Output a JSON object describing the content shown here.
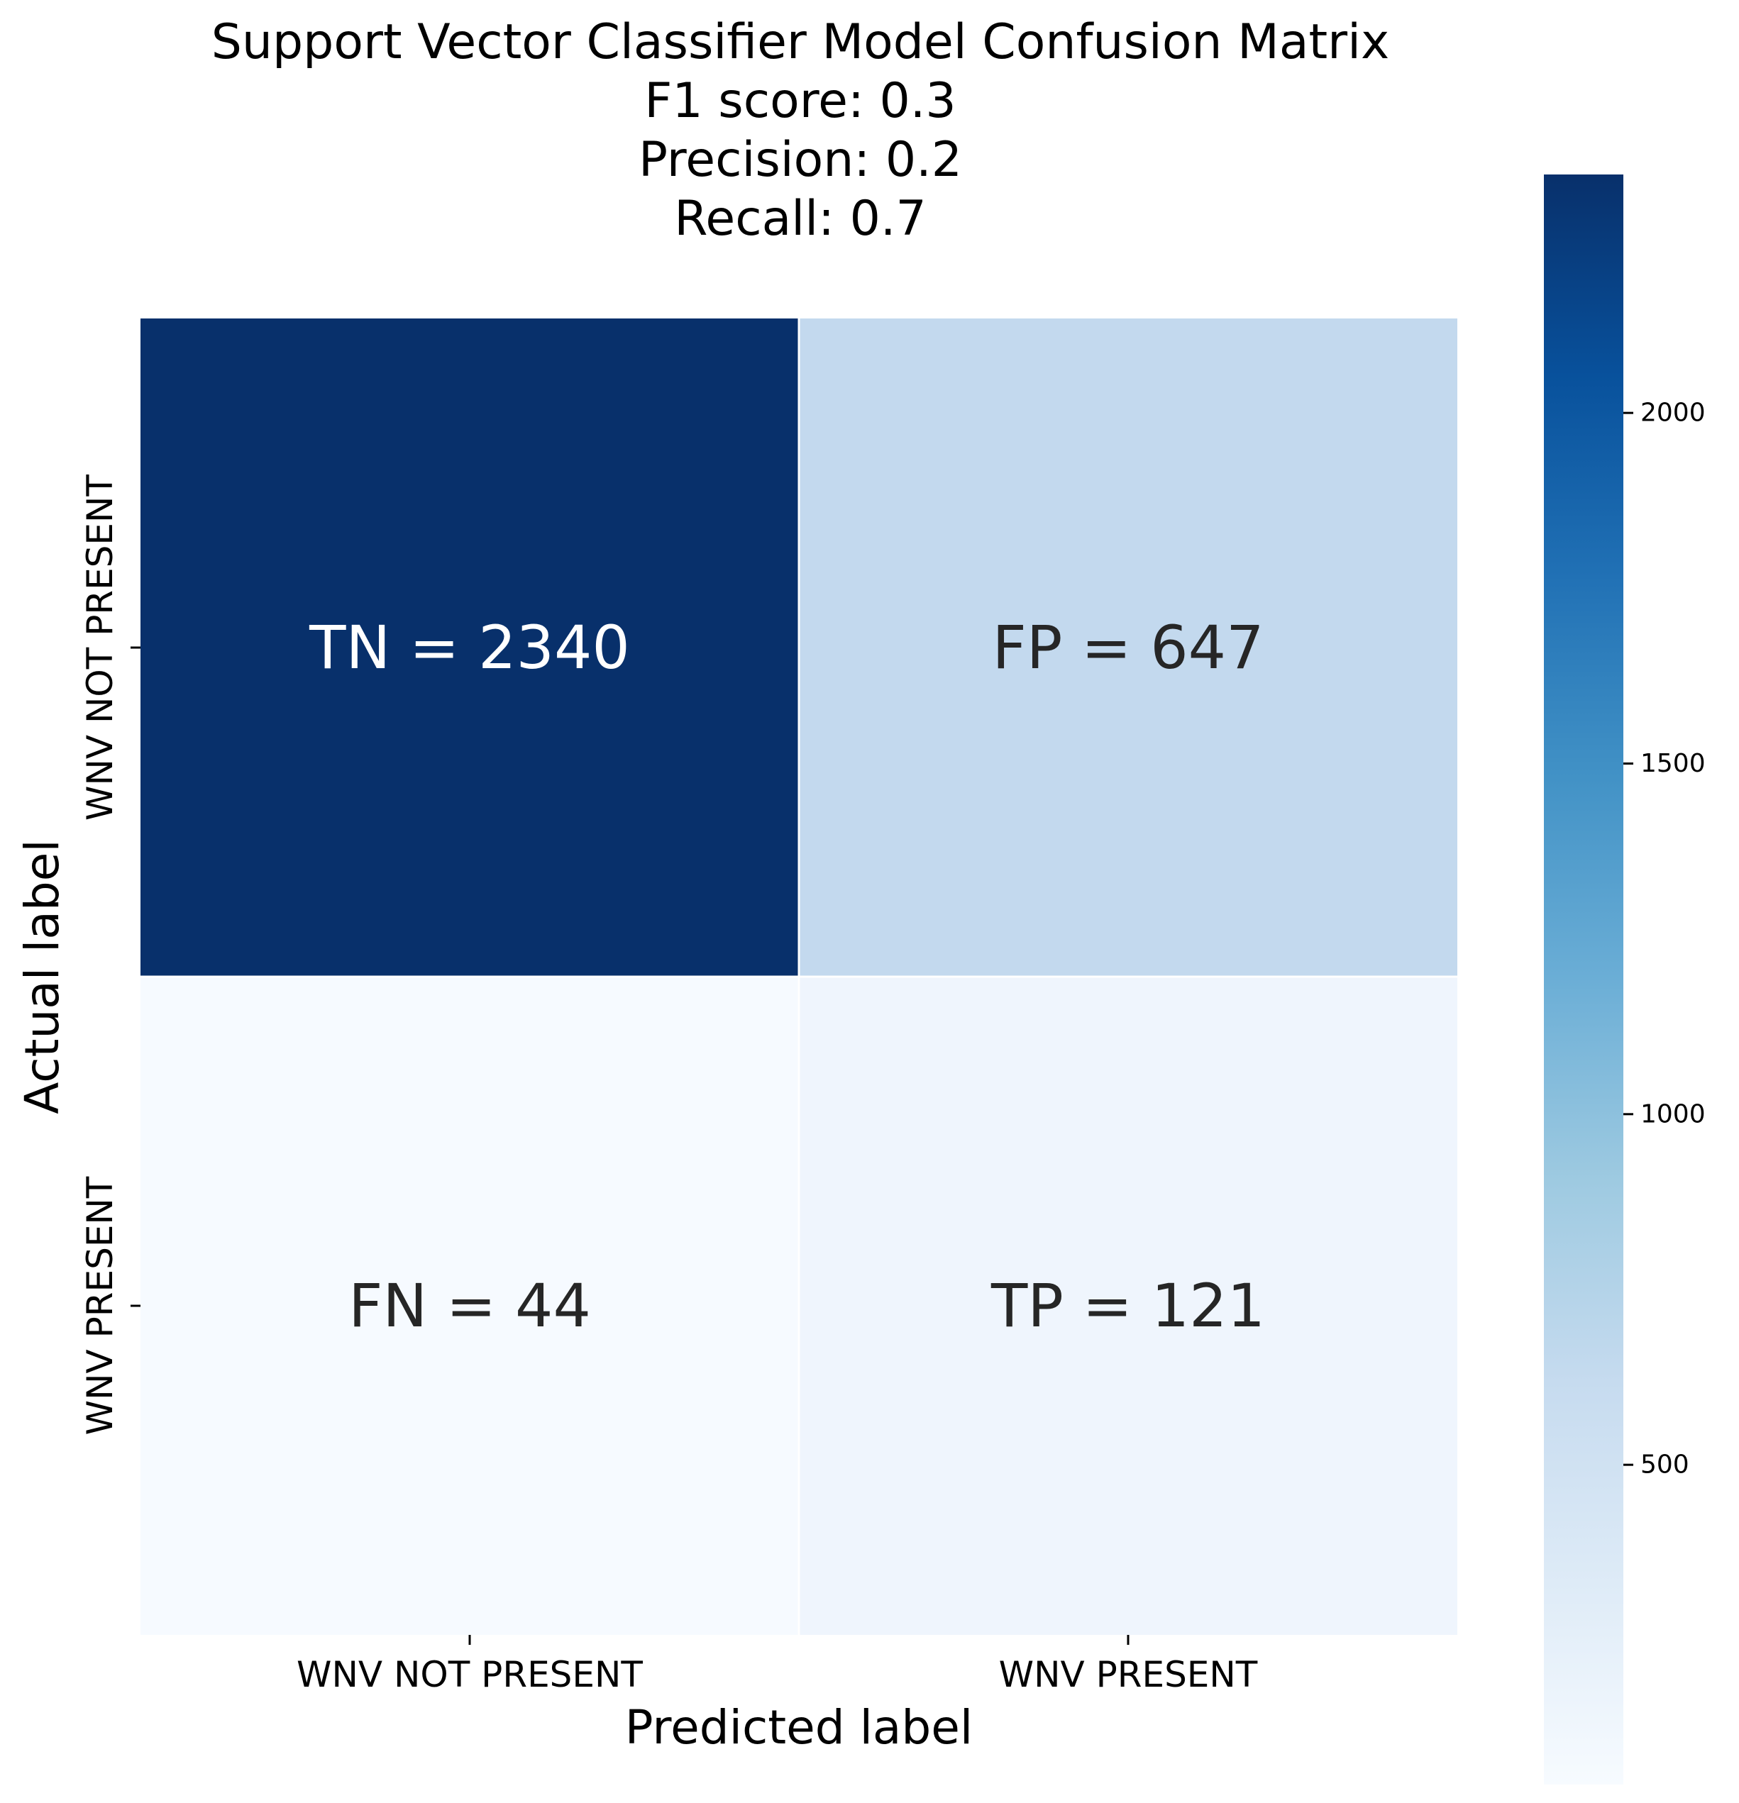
{
  "chart_data": {
    "type": "heatmap",
    "title_lines": [
      "Support Vector Classifier Model Confusion Matrix",
      "F1 score: 0.3",
      "Precision: 0.2",
      "Recall: 0.7"
    ],
    "xlabel": "Predicted label",
    "ylabel": "Actual label",
    "x_categories": [
      "WNV NOT PRESENT",
      "WNV PRESENT"
    ],
    "y_categories": [
      "WNV NOT PRESENT",
      "WNV PRESENT"
    ],
    "values": [
      [
        2340,
        647
      ],
      [
        44,
        121
      ]
    ],
    "annotations": [
      [
        "TN = 2340",
        "FP = 647"
      ],
      [
        "FN = 44",
        "TP = 121"
      ]
    ],
    "colormap": "Blues",
    "colorbar": {
      "min": 44,
      "max": 2340,
      "ticks": [
        500,
        1000,
        1500,
        2000
      ]
    },
    "colors": {
      "cell_tn": "#08306b",
      "cell_fp": "#c3d9ee",
      "cell_fn": "#f6faff",
      "cell_tp": "#eff5fd",
      "annotation_dark_text": "#262626",
      "annotation_light_text": "#ffffff"
    }
  }
}
